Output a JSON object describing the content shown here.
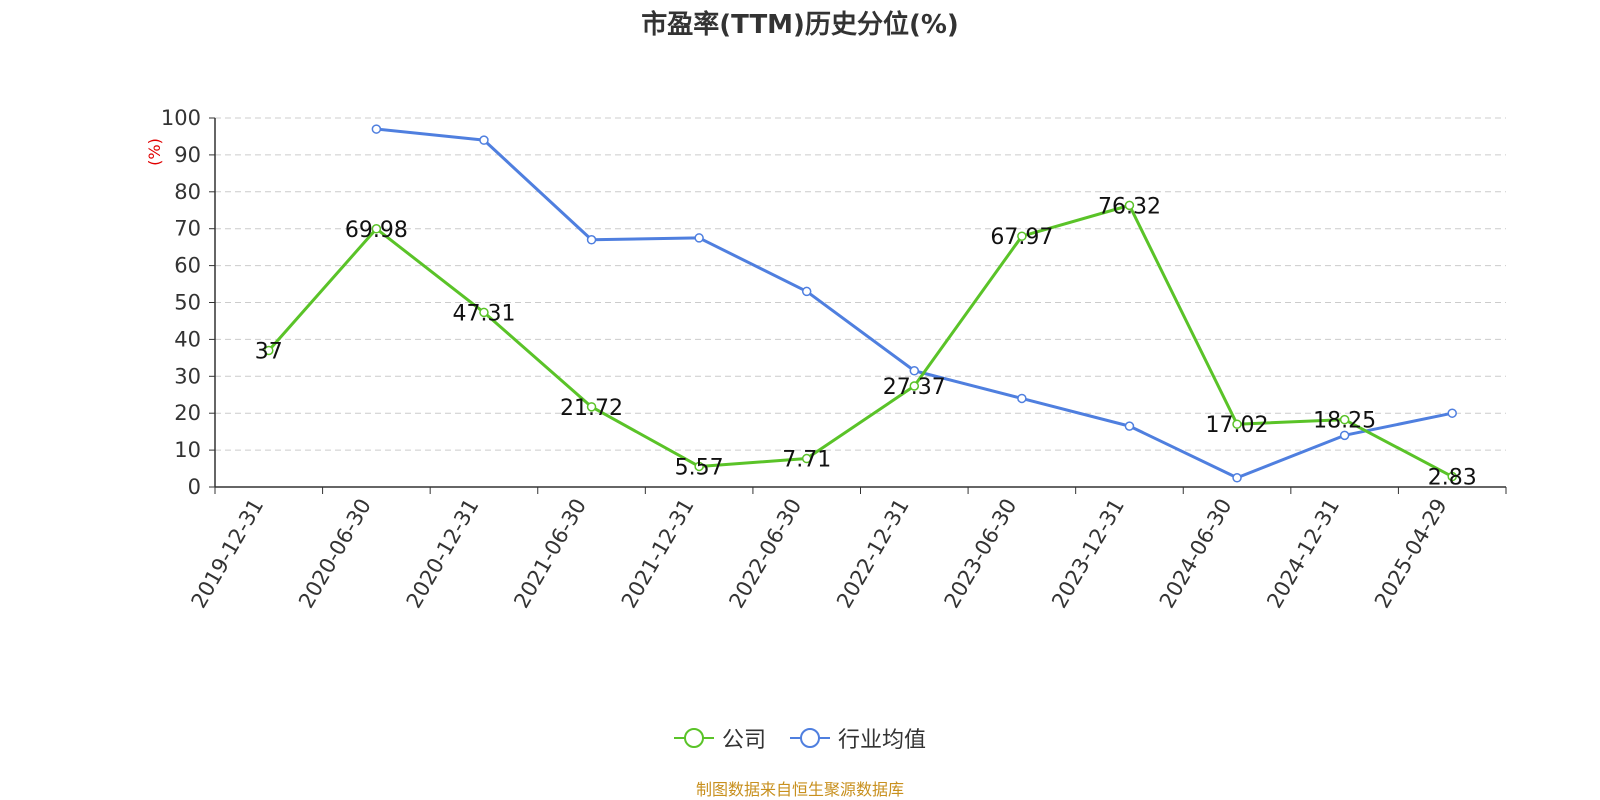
{
  "title": "市盈率(TTM)历史分位(%)",
  "source": "制图数据来自恒生聚源数据库",
  "colors": {
    "company": "#5ac328",
    "industry": "#4f7fdf",
    "source_text": "#c8901e",
    "ylabel": "#e00000"
  },
  "chart_data": {
    "type": "line",
    "title": "市盈率(TTM)历史分位(%)",
    "ylabel": "(%)",
    "xlabel": "",
    "ylim": [
      0,
      100
    ],
    "yticks": [
      0,
      10,
      20,
      30,
      40,
      50,
      60,
      70,
      80,
      90,
      100
    ],
    "grid": true,
    "legend_position": "bottom",
    "categories": [
      "2019-12-31",
      "2020-06-30",
      "2020-12-31",
      "2021-06-30",
      "2021-12-31",
      "2022-06-30",
      "2022-12-31",
      "2023-06-30",
      "2023-12-31",
      "2024-06-30",
      "2024-12-31",
      "2025-04-29"
    ],
    "series": [
      {
        "name": "公司",
        "values": [
          37,
          69.98,
          47.31,
          21.72,
          5.57,
          7.71,
          27.37,
          67.97,
          76.32,
          17.02,
          18.25,
          2.83
        ],
        "labels": [
          "37",
          "69.98",
          "47.31",
          "21.72",
          "5.57",
          "7.71",
          "27.37",
          "67.97",
          "76.32",
          "17.02",
          "18.25",
          "2.83"
        ]
      },
      {
        "name": "行业均值",
        "values": [
          null,
          97,
          94,
          67,
          67.5,
          53,
          31.5,
          24,
          16.5,
          2.5,
          14,
          20
        ]
      }
    ]
  }
}
